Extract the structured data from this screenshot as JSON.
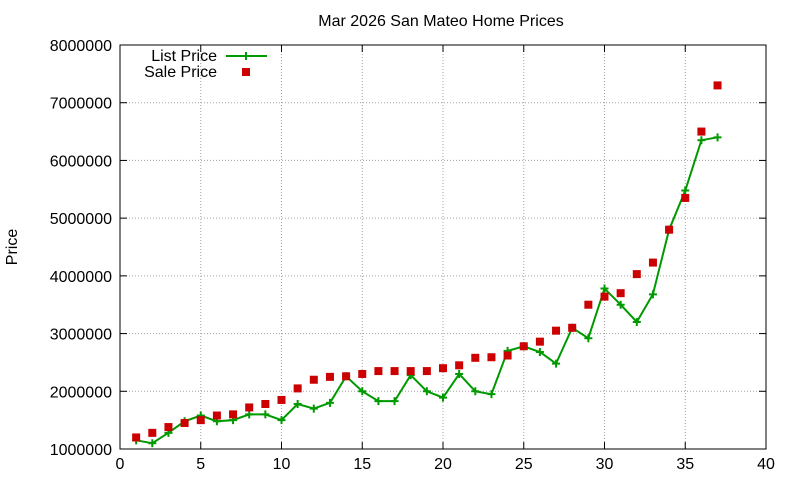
{
  "chart_data": {
    "type": "line",
    "title": "Mar 2026 San Mateo Home Prices",
    "xlabel": "",
    "ylabel": "Price",
    "xlim": [
      0,
      40
    ],
    "ylim": [
      1000000,
      8000000
    ],
    "xticks": [
      0,
      5,
      10,
      15,
      20,
      25,
      30,
      35,
      40
    ],
    "yticks": [
      1000000,
      2000000,
      3000000,
      4000000,
      5000000,
      6000000,
      7000000,
      8000000
    ],
    "grid": true,
    "legend_position": "top-left",
    "series": [
      {
        "name": "List Price",
        "style": "line-with-plus-markers",
        "color": "#009900",
        "x": [
          1,
          2,
          3,
          4,
          5,
          6,
          7,
          8,
          9,
          10,
          11,
          12,
          13,
          14,
          15,
          16,
          17,
          18,
          19,
          20,
          21,
          22,
          23,
          24,
          25,
          26,
          27,
          28,
          29,
          30,
          31,
          32,
          33,
          34,
          35,
          36,
          37
        ],
        "values": [
          1150000,
          1100000,
          1280000,
          1480000,
          1580000,
          1480000,
          1500000,
          1600000,
          1600000,
          1500000,
          1780000,
          1700000,
          1800000,
          2260000,
          2000000,
          1830000,
          1830000,
          2280000,
          2000000,
          1890000,
          2300000,
          2000000,
          1950000,
          2700000,
          2780000,
          2680000,
          2480000,
          3100000,
          2920000,
          3780000,
          3500000,
          3200000,
          3680000,
          4800000,
          5480000,
          6350000,
          6400000
        ]
      },
      {
        "name": "Sale Price",
        "style": "square-markers",
        "color": "#cc0000",
        "x": [
          1,
          2,
          3,
          4,
          5,
          6,
          7,
          8,
          9,
          10,
          11,
          12,
          13,
          14,
          15,
          16,
          17,
          18,
          19,
          20,
          21,
          22,
          23,
          24,
          25,
          26,
          27,
          28,
          29,
          30,
          31,
          32,
          33,
          34,
          35,
          36,
          37
        ],
        "values": [
          1200000,
          1280000,
          1380000,
          1450000,
          1500000,
          1580000,
          1600000,
          1720000,
          1780000,
          1850000,
          2050000,
          2200000,
          2250000,
          2260000,
          2300000,
          2350000,
          2350000,
          2350000,
          2350000,
          2400000,
          2450000,
          2580000,
          2590000,
          2620000,
          2780000,
          2860000,
          3050000,
          3100000,
          3500000,
          3640000,
          3700000,
          4030000,
          4230000,
          4800000,
          5350000,
          6500000,
          7300000
        ]
      }
    ]
  }
}
